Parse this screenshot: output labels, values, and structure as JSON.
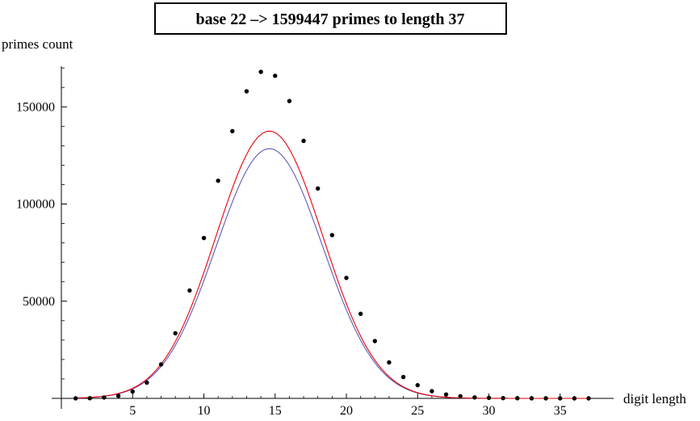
{
  "chart_data": {
    "type": "scatter",
    "title": "base 22  –>  1599447 primes to length 37",
    "xlabel": "digit length",
    "ylabel": "primes count",
    "xlim": [
      0,
      38
    ],
    "ylim": [
      0,
      172000
    ],
    "x_ticks": [
      5,
      10,
      15,
      20,
      25,
      30,
      35
    ],
    "y_ticks": [
      50000,
      100000,
      150000
    ],
    "y_tick_labels": [
      "50000",
      "100000",
      "150000"
    ],
    "grid": false,
    "colors": {
      "points": "#000000",
      "red_curve": "#e8000b",
      "blue_curve": "#5b5bb5"
    },
    "series": [
      {
        "name": "observed primes",
        "kind": "points",
        "x": [
          1,
          2,
          3,
          4,
          5,
          6,
          7,
          8,
          9,
          10,
          11,
          12,
          13,
          14,
          15,
          16,
          17,
          18,
          19,
          20,
          21,
          22,
          23,
          24,
          25,
          26,
          27,
          28,
          29,
          30,
          31,
          32,
          33,
          34,
          35,
          36,
          37
        ],
        "y": [
          8,
          80,
          460,
          1300,
          3500,
          8100,
          17500,
          33500,
          55500,
          82500,
          112000,
          137500,
          158000,
          168000,
          166000,
          153000,
          132500,
          108000,
          84000,
          62000,
          43500,
          29500,
          18500,
          11000,
          6800,
          3700,
          2000,
          1100,
          500,
          260,
          140,
          70,
          35,
          20,
          12,
          6,
          3
        ]
      },
      {
        "name": "red curve",
        "kind": "curve",
        "peak_x": 14.6,
        "peak_y": 137500,
        "sigma": 3.75
      },
      {
        "name": "blue curve",
        "kind": "curve",
        "peak_x": 14.6,
        "peak_y": 128500,
        "sigma": 3.75
      }
    ]
  }
}
